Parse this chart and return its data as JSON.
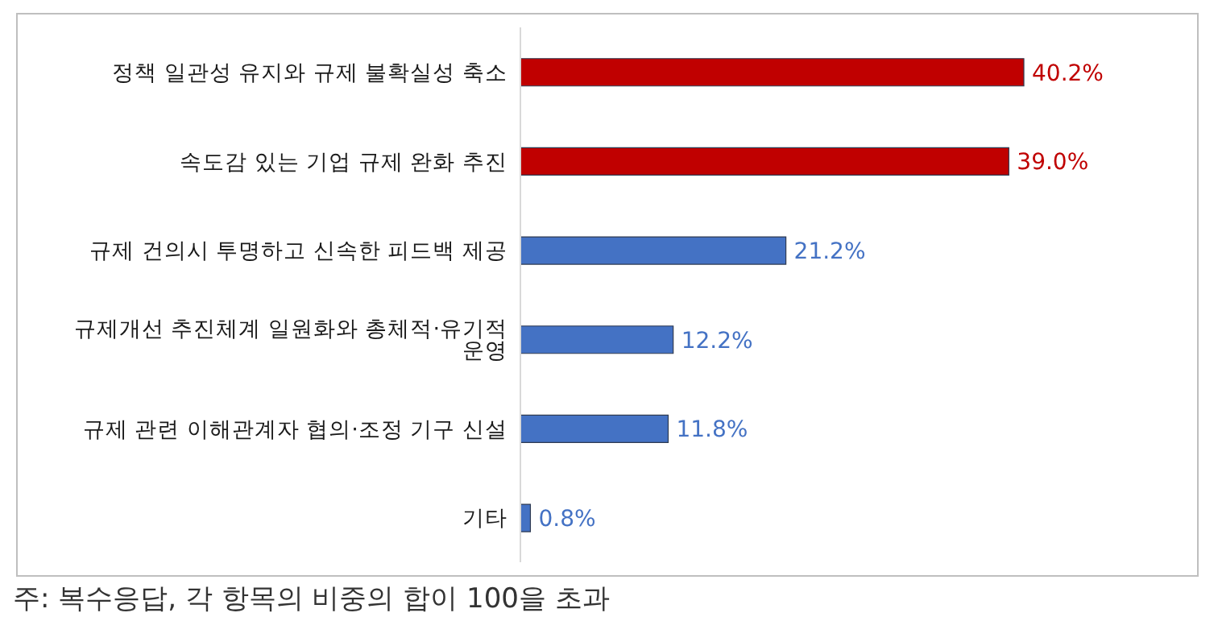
{
  "chart_data": {
    "type": "bar",
    "orientation": "horizontal",
    "categories": [
      "정책 일관성 유지와 규제 불확실성 축소",
      "속도감 있는 기업 규제 완화 추진",
      "규제 건의시 투명하고 신속한 피드백 제공",
      "규제개선 추진체계 일원화와 총체적·유기적 운영",
      "규제 관련 이해관계자 협의·조정 기구 신설",
      "기타"
    ],
    "values": [
      40.2,
      39.0,
      21.2,
      12.2,
      11.8,
      0.8
    ],
    "colors": [
      "#c00000",
      "#c00000",
      "#4472c4",
      "#4472c4",
      "#4472c4",
      "#4472c4"
    ],
    "value_labels": [
      "40.2%",
      "39.0%",
      "21.2%",
      "12.2%",
      "11.8%",
      "0.8%"
    ],
    "grid": false,
    "legend": false,
    "annotations": [
      "주: 복수응답, 각 항목의 비중의 합이 100을 초과"
    ]
  }
}
